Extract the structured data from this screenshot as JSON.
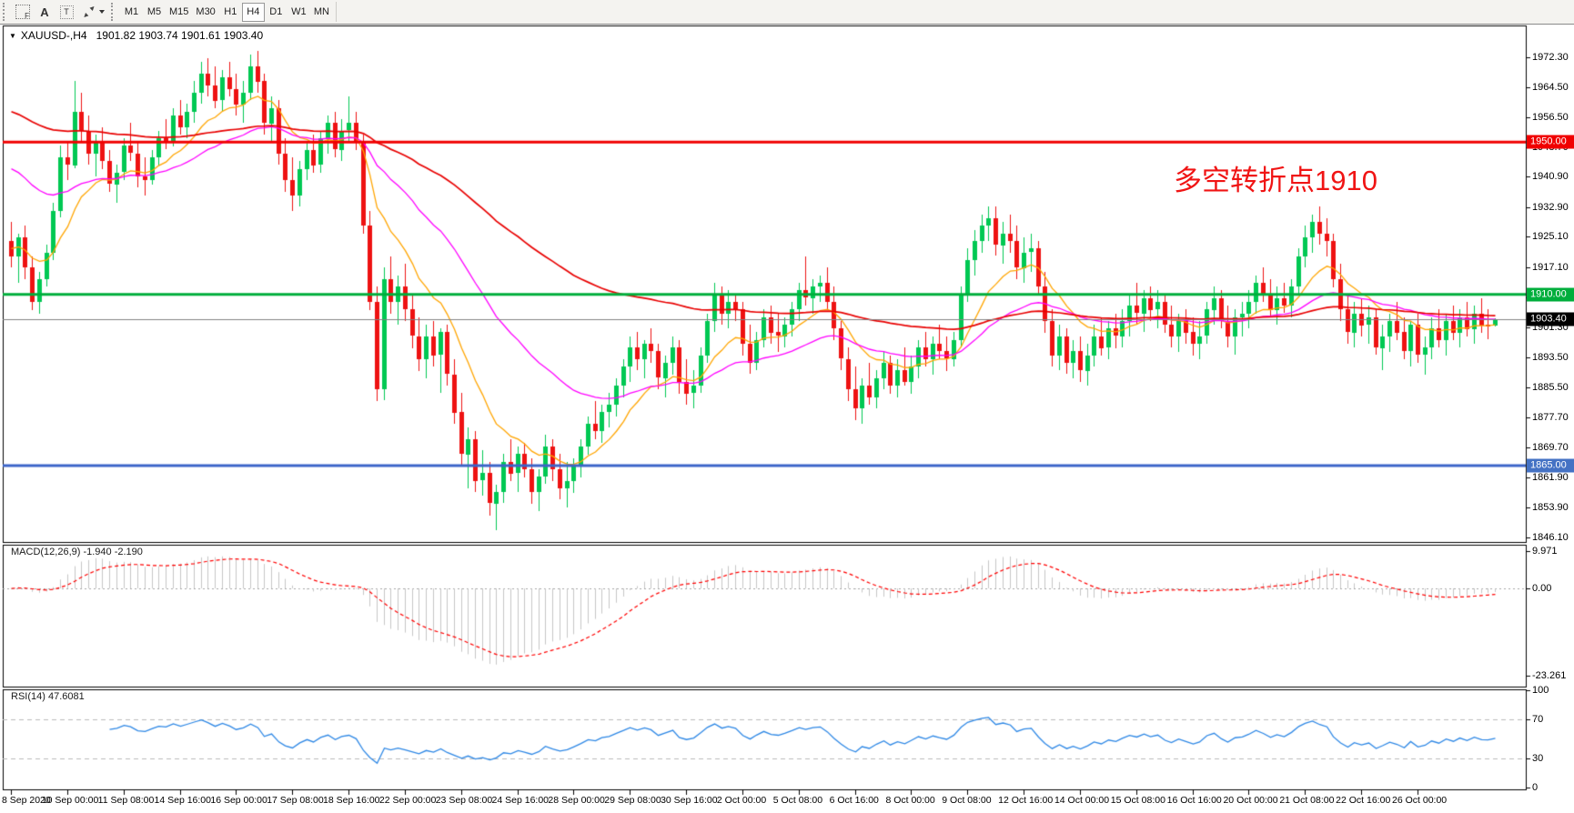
{
  "toolbar": {
    "tools": [
      {
        "id": "grid-f",
        "glyph": "F"
      },
      {
        "id": "text-annotation",
        "glyph": "A"
      },
      {
        "id": "text-label",
        "glyph": "T"
      },
      {
        "id": "arrows-tool",
        "glyph": ""
      }
    ],
    "timeframes": [
      "M1",
      "M5",
      "M15",
      "M30",
      "H1",
      "H4",
      "D1",
      "W1",
      "MN"
    ],
    "active_timeframe": "H4"
  },
  "chart": {
    "symbol": "XAUUSD-,H4",
    "ohlc": "1901.82 1903.74 1901.61 1903.40",
    "annotation": {
      "text": "多空转折点1910",
      "color": "#F01414"
    },
    "hlines": [
      {
        "price": 1950.0,
        "label": "1950.00",
        "color": "#F00000",
        "badge_bg": "#F00000",
        "width": 3
      },
      {
        "price": 1910.0,
        "label": "1910.00",
        "color": "#00AE3C",
        "badge_bg": "#00AE3C",
        "width": 3
      },
      {
        "price": 1865.0,
        "label": "1865.00",
        "color": "#3C64C8",
        "badge_bg": "#4472C4",
        "width": 3
      }
    ],
    "current_price": {
      "value": 1903.4,
      "label": "1903.40",
      "line_color": "#808080",
      "badge_bg": "#000000"
    },
    "price_axis": [
      1972.3,
      1964.5,
      1956.5,
      1948.7,
      1940.9,
      1932.9,
      1925.1,
      1917.1,
      1909.3,
      1901.3,
      1893.5,
      1885.5,
      1877.7,
      1869.7,
      1861.9,
      1853.9,
      1846.1
    ],
    "time_axis": [
      "8 Sep 2020",
      "10 Sep 00:00",
      "11 Sep 08:00",
      "14 Sep 16:00",
      "16 Sep 00:00",
      "17 Sep 08:00",
      "18 Sep 16:00",
      "22 Sep 00:00",
      "23 Sep 08:00",
      "24 Sep 16:00",
      "28 Sep 00:00",
      "29 Sep 08:00",
      "30 Sep 16:00",
      "2 Oct 00:00",
      "5 Oct 08:00",
      "6 Oct 16:00",
      "8 Oct 00:00",
      "9 Oct 08:00",
      "12 Oct 16:00",
      "14 Oct 00:00",
      "15 Oct 08:00",
      "16 Oct 16:00",
      "20 Oct 00:00",
      "21 Oct 08:00",
      "22 Oct 16:00",
      "26 Oct 00:00"
    ]
  },
  "indicators": {
    "mas": [
      {
        "period": 12,
        "color": "#FFA500",
        "seed": 1922
      },
      {
        "period": 34,
        "color": "#FF00FF",
        "seed": 1943
      },
      {
        "period": 90,
        "color": "#E80000",
        "seed": 1958
      }
    ],
    "macd": {
      "display": "MACD(12,26,9) -1.940 -2.190",
      "name": "MACD(12,26,9)",
      "value_main": "-1.940",
      "value_signal": "-2.190",
      "fast": 12,
      "slow": 26,
      "signal": 9,
      "axis": [
        {
          "v": 9.971,
          "t": "9.971"
        },
        {
          "v": 0,
          "t": "0.00"
        },
        {
          "v": -23.261,
          "t": "-23.261"
        }
      ],
      "hist_color": "#C6C6C6",
      "signal_color": "#FF0000"
    },
    "rsi": {
      "display": "RSI(14) 47.6081",
      "name": "RSI(14)",
      "value": "47.6081",
      "period": 14,
      "axis": [
        {
          "v": 100,
          "t": "100"
        },
        {
          "v": 70,
          "t": "70"
        },
        {
          "v": 30,
          "t": "30"
        },
        {
          "v": 0,
          "t": "0"
        }
      ],
      "color": "#2D87E5",
      "levels": [
        70,
        30
      ],
      "level_color": "#BBBBBB"
    }
  },
  "chart_data": {
    "type": "candlestick",
    "symbol": "XAUUSD-",
    "timeframe": "H4",
    "title": "XAUUSD-,H4 1901.82 1903.74 1901.61 1903.40",
    "last_ohlc": {
      "open": 1901.82,
      "high": 1903.74,
      "low": 1901.61,
      "close": 1903.4
    },
    "ylim": [
      1846.1,
      1972.3
    ],
    "up_color": "#00C853",
    "down_color": "#EE1212",
    "candles": [
      [
        1924,
        1929,
        1917,
        1920
      ],
      [
        1920,
        1926,
        1913,
        1925
      ],
      [
        1925,
        1928,
        1914,
        1917
      ],
      [
        1917,
        1920,
        1906,
        1908
      ],
      [
        1908,
        1916,
        1905,
        1914
      ],
      [
        1914,
        1923,
        1912,
        1921
      ],
      [
        1921,
        1934,
        1919,
        1932
      ],
      [
        1932,
        1949,
        1930,
        1946
      ],
      [
        1946,
        1950,
        1940,
        1944
      ],
      [
        1944,
        1966,
        1943,
        1958
      ],
      [
        1958,
        1963,
        1950,
        1953
      ],
      [
        1953,
        1957,
        1944,
        1947
      ],
      [
        1947,
        1952,
        1941,
        1950
      ],
      [
        1950,
        1954,
        1943,
        1945
      ],
      [
        1945,
        1948,
        1937,
        1939
      ],
      [
        1939,
        1944,
        1934,
        1942
      ],
      [
        1942,
        1951,
        1940,
        1949
      ],
      [
        1949,
        1955,
        1945,
        1947
      ],
      [
        1947,
        1950,
        1938,
        1941
      ],
      [
        1941,
        1946,
        1936,
        1940
      ],
      [
        1940,
        1948,
        1939,
        1946
      ],
      [
        1946,
        1953,
        1944,
        1951
      ],
      [
        1951,
        1956,
        1948,
        1950
      ],
      [
        1950,
        1959,
        1949,
        1957
      ],
      [
        1957,
        1961,
        1952,
        1954
      ],
      [
        1954,
        1960,
        1951,
        1958
      ],
      [
        1958,
        1966,
        1955,
        1963
      ],
      [
        1963,
        1971,
        1960,
        1968
      ],
      [
        1968,
        1972,
        1962,
        1965
      ],
      [
        1965,
        1970,
        1959,
        1961
      ],
      [
        1961,
        1969,
        1958,
        1967
      ],
      [
        1967,
        1971,
        1962,
        1964
      ],
      [
        1964,
        1968,
        1957,
        1960
      ],
      [
        1960,
        1966,
        1955,
        1963
      ],
      [
        1963,
        1973,
        1961,
        1970
      ],
      [
        1970,
        1974,
        1963,
        1966
      ],
      [
        1966,
        1968,
        1952,
        1955
      ],
      [
        1955,
        1962,
        1950,
        1959
      ],
      [
        1959,
        1961,
        1944,
        1947
      ],
      [
        1947,
        1951,
        1937,
        1940
      ],
      [
        1940,
        1946,
        1932,
        1936
      ],
      [
        1936,
        1945,
        1933,
        1943
      ],
      [
        1943,
        1950,
        1940,
        1948
      ],
      [
        1948,
        1952,
        1942,
        1944
      ],
      [
        1944,
        1953,
        1942,
        1951
      ],
      [
        1951,
        1957,
        1947,
        1955
      ],
      [
        1955,
        1958,
        1946,
        1948
      ],
      [
        1948,
        1956,
        1945,
        1953
      ],
      [
        1953,
        1962,
        1950,
        1955
      ],
      [
        1955,
        1958,
        1948,
        1950
      ],
      [
        1950,
        1952,
        1926,
        1928
      ],
      [
        1928,
        1932,
        1906,
        1908
      ],
      [
        1908,
        1912,
        1882,
        1885
      ],
      [
        1885,
        1917,
        1882,
        1914
      ],
      [
        1914,
        1920,
        1905,
        1908
      ],
      [
        1908,
        1915,
        1902,
        1912
      ],
      [
        1912,
        1918,
        1903,
        1906
      ],
      [
        1906,
        1910,
        1896,
        1899
      ],
      [
        1899,
        1904,
        1890,
        1893
      ],
      [
        1893,
        1902,
        1888,
        1899
      ],
      [
        1899,
        1903,
        1891,
        1894
      ],
      [
        1894,
        1901,
        1884,
        1900
      ],
      [
        1900,
        1902,
        1886,
        1889
      ],
      [
        1889,
        1893,
        1876,
        1879
      ],
      [
        1879,
        1884,
        1865,
        1868
      ],
      [
        1868,
        1875,
        1859,
        1872
      ],
      [
        1872,
        1874,
        1858,
        1861
      ],
      [
        1861,
        1869,
        1857,
        1863
      ],
      [
        1863,
        1866,
        1852,
        1855
      ],
      [
        1855,
        1860,
        1848,
        1858
      ],
      [
        1858,
        1868,
        1855,
        1866
      ],
      [
        1866,
        1872,
        1861,
        1863
      ],
      [
        1863,
        1870,
        1858,
        1868
      ],
      [
        1868,
        1871,
        1862,
        1864
      ],
      [
        1864,
        1867,
        1855,
        1858
      ],
      [
        1858,
        1864,
        1853,
        1862
      ],
      [
        1862,
        1873,
        1860,
        1870
      ],
      [
        1870,
        1872,
        1861,
        1864
      ],
      [
        1864,
        1868,
        1856,
        1859
      ],
      [
        1859,
        1866,
        1854,
        1861
      ],
      [
        1861,
        1867,
        1858,
        1865
      ],
      [
        1865,
        1872,
        1862,
        1870
      ],
      [
        1870,
        1878,
        1868,
        1876
      ],
      [
        1876,
        1882,
        1872,
        1874
      ],
      [
        1874,
        1881,
        1871,
        1879
      ],
      [
        1879,
        1884,
        1875,
        1881
      ],
      [
        1881,
        1888,
        1878,
        1886
      ],
      [
        1886,
        1893,
        1883,
        1891
      ],
      [
        1891,
        1899,
        1887,
        1896
      ],
      [
        1896,
        1900,
        1890,
        1893
      ],
      [
        1893,
        1898,
        1888,
        1897
      ],
      [
        1897,
        1901,
        1892,
        1895
      ],
      [
        1895,
        1897,
        1885,
        1888
      ],
      [
        1888,
        1894,
        1883,
        1892
      ],
      [
        1892,
        1899,
        1889,
        1896
      ],
      [
        1896,
        1898,
        1884,
        1887
      ],
      [
        1887,
        1893,
        1881,
        1884
      ],
      [
        1884,
        1890,
        1880,
        1886
      ],
      [
        1886,
        1896,
        1884,
        1894
      ],
      [
        1894,
        1905,
        1892,
        1903
      ],
      [
        1903,
        1913,
        1900,
        1910
      ],
      [
        1910,
        1912,
        1902,
        1905
      ],
      [
        1905,
        1911,
        1901,
        1908
      ],
      [
        1908,
        1910,
        1903,
        1906
      ],
      [
        1906,
        1908,
        1894,
        1897
      ],
      [
        1897,
        1902,
        1889,
        1892
      ],
      [
        1892,
        1900,
        1890,
        1898
      ],
      [
        1898,
        1906,
        1896,
        1904
      ],
      [
        1904,
        1907,
        1897,
        1900
      ],
      [
        1900,
        1905,
        1895,
        1899
      ],
      [
        1899,
        1904,
        1896,
        1902
      ],
      [
        1902,
        1908,
        1899,
        1906
      ],
      [
        1906,
        1913,
        1903,
        1911
      ],
      [
        1911,
        1920,
        1907,
        1909
      ],
      [
        1909,
        1914,
        1905,
        1912
      ],
      [
        1912,
        1915,
        1908,
        1913
      ],
      [
        1913,
        1917,
        1906,
        1908
      ],
      [
        1908,
        1912,
        1898,
        1901
      ],
      [
        1901,
        1903,
        1890,
        1893
      ],
      [
        1893,
        1896,
        1882,
        1885
      ],
      [
        1885,
        1891,
        1877,
        1880
      ],
      [
        1880,
        1888,
        1876,
        1886
      ],
      [
        1886,
        1892,
        1881,
        1883
      ],
      [
        1883,
        1890,
        1880,
        1888
      ],
      [
        1888,
        1895,
        1885,
        1892
      ],
      [
        1892,
        1894,
        1884,
        1886
      ],
      [
        1886,
        1893,
        1883,
        1890
      ],
      [
        1890,
        1896,
        1886,
        1887
      ],
      [
        1887,
        1894,
        1884,
        1891
      ],
      [
        1891,
        1898,
        1888,
        1896
      ],
      [
        1896,
        1900,
        1891,
        1893
      ],
      [
        1893,
        1899,
        1889,
        1897
      ],
      [
        1897,
        1902,
        1893,
        1895
      ],
      [
        1895,
        1899,
        1890,
        1893
      ],
      [
        1893,
        1900,
        1891,
        1898
      ],
      [
        1898,
        1912,
        1896,
        1910
      ],
      [
        1910,
        1922,
        1908,
        1919
      ],
      [
        1919,
        1927,
        1915,
        1924
      ],
      [
        1924,
        1931,
        1921,
        1928
      ],
      [
        1928,
        1933,
        1924,
        1930
      ],
      [
        1930,
        1933,
        1920,
        1923
      ],
      [
        1923,
        1929,
        1918,
        1926
      ],
      [
        1926,
        1931,
        1921,
        1924
      ],
      [
        1924,
        1928,
        1914,
        1917
      ],
      [
        1917,
        1925,
        1913,
        1921
      ],
      [
        1921,
        1926,
        1916,
        1922
      ],
      [
        1922,
        1924,
        1910,
        1912
      ],
      [
        1912,
        1916,
        1900,
        1903
      ],
      [
        1903,
        1906,
        1891,
        1894
      ],
      [
        1894,
        1902,
        1890,
        1899
      ],
      [
        1899,
        1901,
        1889,
        1892
      ],
      [
        1892,
        1898,
        1888,
        1895
      ],
      [
        1895,
        1899,
        1887,
        1890
      ],
      [
        1890,
        1897,
        1886,
        1894
      ],
      [
        1894,
        1902,
        1891,
        1899
      ],
      [
        1899,
        1904,
        1894,
        1896
      ],
      [
        1896,
        1903,
        1893,
        1901
      ],
      [
        1901,
        1905,
        1896,
        1899
      ],
      [
        1899,
        1906,
        1896,
        1903
      ],
      [
        1903,
        1910,
        1899,
        1907
      ],
      [
        1907,
        1913,
        1902,
        1905
      ],
      [
        1905,
        1911,
        1900,
        1909
      ],
      [
        1909,
        1912,
        1903,
        1906
      ],
      [
        1906,
        1911,
        1901,
        1908
      ],
      [
        1908,
        1910,
        1900,
        1902
      ],
      [
        1902,
        1907,
        1896,
        1899
      ],
      [
        1899,
        1905,
        1895,
        1903
      ],
      [
        1903,
        1906,
        1897,
        1900
      ],
      [
        1900,
        1904,
        1894,
        1897
      ],
      [
        1897,
        1903,
        1893,
        1899
      ],
      [
        1899,
        1908,
        1897,
        1906
      ],
      [
        1906,
        1912,
        1902,
        1909
      ],
      [
        1909,
        1911,
        1901,
        1903
      ],
      [
        1903,
        1907,
        1896,
        1899
      ],
      [
        1899,
        1906,
        1894,
        1904
      ],
      [
        1904,
        1908,
        1899,
        1905
      ],
      [
        1905,
        1911,
        1901,
        1908
      ],
      [
        1908,
        1915,
        1905,
        1913
      ],
      [
        1913,
        1917,
        1908,
        1910
      ],
      [
        1910,
        1914,
        1904,
        1906
      ],
      [
        1906,
        1912,
        1902,
        1909
      ],
      [
        1909,
        1913,
        1905,
        1907
      ],
      [
        1907,
        1914,
        1904,
        1912
      ],
      [
        1912,
        1922,
        1910,
        1920
      ],
      [
        1920,
        1928,
        1917,
        1925
      ],
      [
        1925,
        1931,
        1921,
        1929
      ],
      [
        1929,
        1933,
        1923,
        1926
      ],
      [
        1926,
        1930,
        1920,
        1924
      ],
      [
        1924,
        1926,
        1912,
        1914
      ],
      [
        1914,
        1918,
        1903,
        1906
      ],
      [
        1906,
        1910,
        1897,
        1900
      ],
      [
        1900,
        1908,
        1896,
        1905
      ],
      [
        1905,
        1909,
        1899,
        1902
      ],
      [
        1902,
        1907,
        1897,
        1904
      ],
      [
        1904,
        1906,
        1894,
        1896
      ],
      [
        1896,
        1902,
        1890,
        1899
      ],
      [
        1899,
        1905,
        1895,
        1903
      ],
      [
        1903,
        1908,
        1898,
        1900
      ],
      [
        1900,
        1904,
        1893,
        1895
      ],
      [
        1895,
        1903,
        1891,
        1902
      ],
      [
        1902,
        1905,
        1892,
        1894
      ],
      [
        1894,
        1899,
        1889,
        1896
      ],
      [
        1896,
        1904,
        1893,
        1901
      ],
      [
        1901,
        1906,
        1896,
        1898
      ],
      [
        1898,
        1905,
        1894,
        1903
      ],
      [
        1903,
        1907,
        1898,
        1900
      ],
      [
        1900,
        1906,
        1896,
        1904
      ],
      [
        1904,
        1908,
        1899,
        1901
      ],
      [
        1901,
        1907,
        1897,
        1905
      ],
      [
        1905,
        1909,
        1900,
        1902
      ],
      [
        1902,
        1906,
        1898,
        1901.8
      ],
      [
        1901.8,
        1903.74,
        1901.61,
        1903.4
      ]
    ]
  }
}
